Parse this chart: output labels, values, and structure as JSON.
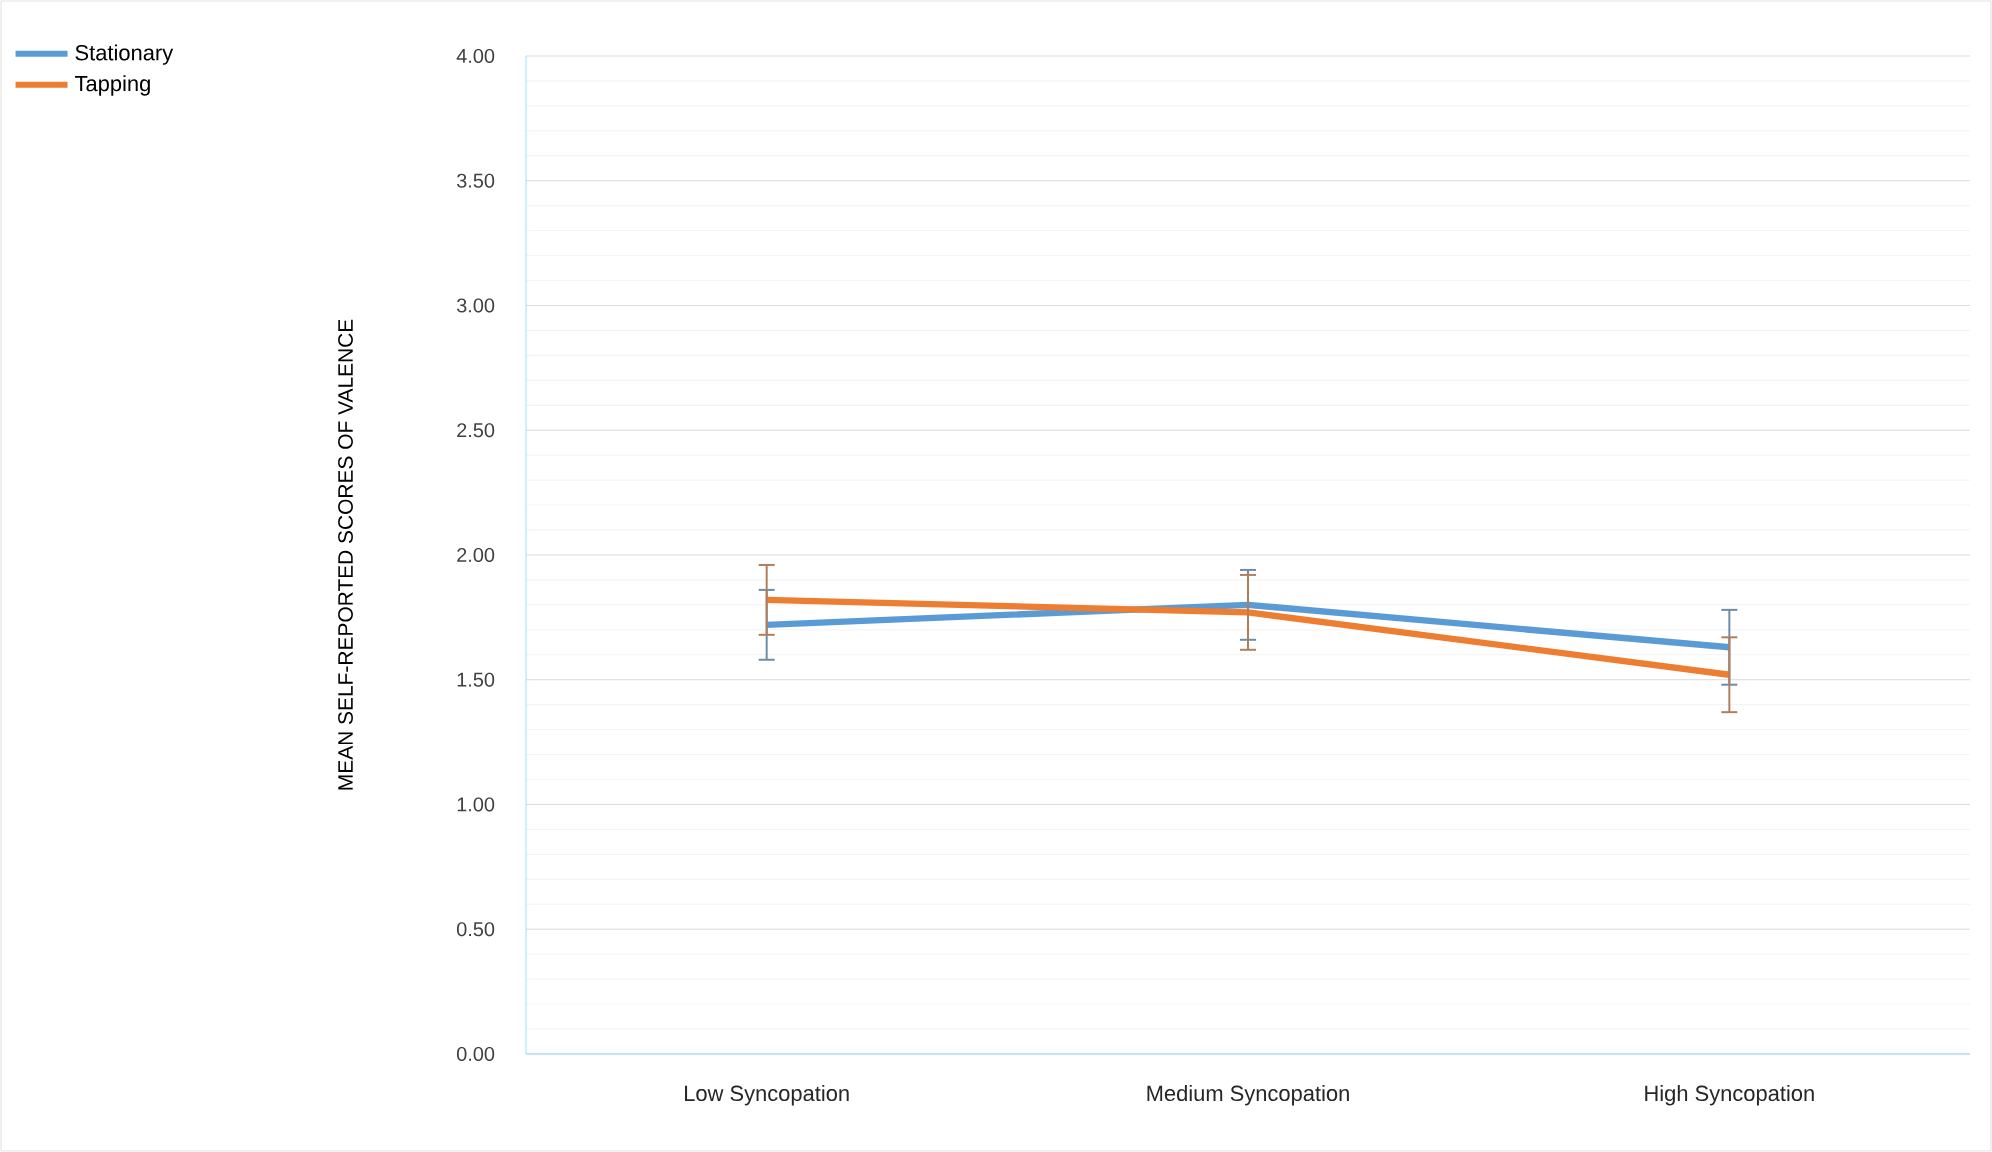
{
  "chart_data": {
    "type": "line",
    "ylabel": "MEAN SELF-REPORTED SCORES OF VALENCE",
    "categories": [
      "Low Syncopation",
      "Medium Syncopation",
      "High Syncopation"
    ],
    "series": [
      {
        "name": "Stationary",
        "color": "#5b9bd5",
        "values": [
          1.72,
          1.8,
          1.63
        ],
        "errors": [
          0.14,
          0.14,
          0.15
        ]
      },
      {
        "name": "Tapping",
        "color": "#ed7d31",
        "values": [
          1.82,
          1.77,
          1.52
        ],
        "errors": [
          0.14,
          0.15,
          0.15
        ]
      }
    ],
    "ylim": [
      0,
      4
    ],
    "yticks": [
      {
        "value": 0,
        "label": "0.00"
      },
      {
        "value": 0.5,
        "label": "0.50"
      },
      {
        "value": 1,
        "label": "1.00"
      },
      {
        "value": 1.5,
        "label": "1.50"
      },
      {
        "value": 2,
        "label": "2.00"
      },
      {
        "value": 2.5,
        "label": "2.50"
      },
      {
        "value": 3,
        "label": "3.00"
      },
      {
        "value": 3.5,
        "label": "3.50"
      },
      {
        "value": 4,
        "label": "4.00"
      }
    ],
    "grid": "y",
    "legend": "top left",
    "marker": "none",
    "line_style": "solid"
  }
}
